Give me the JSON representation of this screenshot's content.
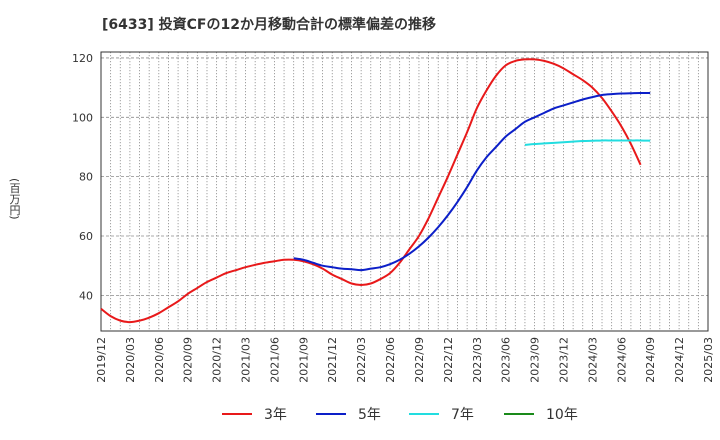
{
  "title": "[6433]  投資CFの12か月移動合計の標準偏差の推移",
  "y_unit": "(百万円)",
  "chart_data": {
    "type": "line",
    "title": "[6433]  投資CFの12か月移動合計の標準偏差の推移",
    "xlabel": "",
    "ylabel": "(百万円)",
    "ylim": [
      28,
      122
    ],
    "yticks": [
      40,
      60,
      80,
      100,
      120
    ],
    "grid": true,
    "legend_position": "bottom",
    "x_ticks": [
      "2019/12",
      "2020/03",
      "2020/06",
      "2020/09",
      "2020/12",
      "2021/03",
      "2021/06",
      "2021/09",
      "2021/12",
      "2022/03",
      "2022/06",
      "2022/09",
      "2022/12",
      "2023/03",
      "2023/06",
      "2023/09",
      "2023/12",
      "2024/03",
      "2024/06",
      "2024/09",
      "2024/12",
      "2025/03"
    ],
    "series": [
      {
        "name": "3年",
        "color": "#e8191a",
        "points": [
          [
            "2019/12",
            35.5
          ],
          [
            "2020/01",
            33.0
          ],
          [
            "2020/02",
            31.5
          ],
          [
            "2020/03",
            31.0
          ],
          [
            "2020/04",
            31.5
          ],
          [
            "2020/05",
            32.5
          ],
          [
            "2020/06",
            34.0
          ],
          [
            "2020/07",
            36.0
          ],
          [
            "2020/08",
            38.0
          ],
          [
            "2020/09",
            40.5
          ],
          [
            "2020/10",
            42.5
          ],
          [
            "2020/11",
            44.5
          ],
          [
            "2020/12",
            46.0
          ],
          [
            "2021/01",
            47.5
          ],
          [
            "2021/02",
            48.5
          ],
          [
            "2021/03",
            49.5
          ],
          [
            "2021/04",
            50.3
          ],
          [
            "2021/05",
            51.0
          ],
          [
            "2021/06",
            51.5
          ],
          [
            "2021/07",
            52.0
          ],
          [
            "2021/08",
            52.0
          ],
          [
            "2021/09",
            51.5
          ],
          [
            "2021/10",
            50.5
          ],
          [
            "2021/11",
            49.0
          ],
          [
            "2021/12",
            47.0
          ],
          [
            "2022/01",
            45.5
          ],
          [
            "2022/02",
            44.0
          ],
          [
            "2022/03",
            43.5
          ],
          [
            "2022/04",
            44.0
          ],
          [
            "2022/05",
            45.5
          ],
          [
            "2022/06",
            47.5
          ],
          [
            "2022/07",
            51.0
          ],
          [
            "2022/08",
            55.5
          ],
          [
            "2022/09",
            60.0
          ],
          [
            "2022/10",
            66.0
          ],
          [
            "2022/11",
            73.0
          ],
          [
            "2022/12",
            80.0
          ],
          [
            "2023/01",
            87.5
          ],
          [
            "2023/02",
            95.0
          ],
          [
            "2023/03",
            103.0
          ],
          [
            "2023/04",
            109.0
          ],
          [
            "2023/05",
            114.0
          ],
          [
            "2023/06",
            117.5
          ],
          [
            "2023/07",
            119.0
          ],
          [
            "2023/08",
            119.5
          ],
          [
            "2023/09",
            119.5
          ],
          [
            "2023/10",
            119.0
          ],
          [
            "2023/11",
            118.0
          ],
          [
            "2023/12",
            116.5
          ],
          [
            "2024/01",
            114.5
          ],
          [
            "2024/02",
            112.5
          ],
          [
            "2024/03",
            110.0
          ],
          [
            "2024/04",
            106.5
          ],
          [
            "2024/05",
            102.0
          ],
          [
            "2024/06",
            97.0
          ],
          [
            "2024/07",
            91.0
          ],
          [
            "2024/08",
            84.0
          ]
        ]
      },
      {
        "name": "5年",
        "color": "#0c1fc8",
        "points": [
          [
            "2021/08",
            52.5
          ],
          [
            "2021/09",
            52.0
          ],
          [
            "2021/10",
            51.0
          ],
          [
            "2021/11",
            50.0
          ],
          [
            "2021/12",
            49.5
          ],
          [
            "2022/01",
            49.0
          ],
          [
            "2022/02",
            48.8
          ],
          [
            "2022/03",
            48.5
          ],
          [
            "2022/04",
            49.0
          ],
          [
            "2022/05",
            49.5
          ],
          [
            "2022/06",
            50.5
          ],
          [
            "2022/07",
            52.0
          ],
          [
            "2022/08",
            54.0
          ],
          [
            "2022/09",
            56.5
          ],
          [
            "2022/10",
            59.5
          ],
          [
            "2022/11",
            63.0
          ],
          [
            "2022/12",
            67.0
          ],
          [
            "2023/01",
            71.5
          ],
          [
            "2023/02",
            76.5
          ],
          [
            "2023/03",
            82.0
          ],
          [
            "2023/04",
            86.5
          ],
          [
            "2023/05",
            90.0
          ],
          [
            "2023/06",
            93.5
          ],
          [
            "2023/07",
            96.0
          ],
          [
            "2023/08",
            98.5
          ],
          [
            "2023/09",
            100.0
          ],
          [
            "2023/10",
            101.5
          ],
          [
            "2023/11",
            103.0
          ],
          [
            "2023/12",
            104.0
          ],
          [
            "2024/01",
            105.0
          ],
          [
            "2024/02",
            106.0
          ],
          [
            "2024/03",
            106.8
          ],
          [
            "2024/04",
            107.5
          ],
          [
            "2024/05",
            107.8
          ],
          [
            "2024/06",
            108.0
          ],
          [
            "2024/07",
            108.1
          ],
          [
            "2024/08",
            108.2
          ],
          [
            "2024/09",
            108.2
          ]
        ]
      },
      {
        "name": "7年",
        "color": "#22dde0",
        "points": [
          [
            "2023/08",
            90.7
          ],
          [
            "2023/09",
            91.0
          ],
          [
            "2023/10",
            91.2
          ],
          [
            "2023/11",
            91.4
          ],
          [
            "2023/12",
            91.6
          ],
          [
            "2024/01",
            91.8
          ],
          [
            "2024/02",
            92.0
          ],
          [
            "2024/03",
            92.1
          ],
          [
            "2024/04",
            92.2
          ],
          [
            "2024/05",
            92.2
          ],
          [
            "2024/06",
            92.2
          ],
          [
            "2024/07",
            92.2
          ],
          [
            "2024/08",
            92.2
          ],
          [
            "2024/09",
            92.1
          ]
        ]
      },
      {
        "name": "10年",
        "color": "#1a8a1a",
        "points": []
      }
    ]
  }
}
